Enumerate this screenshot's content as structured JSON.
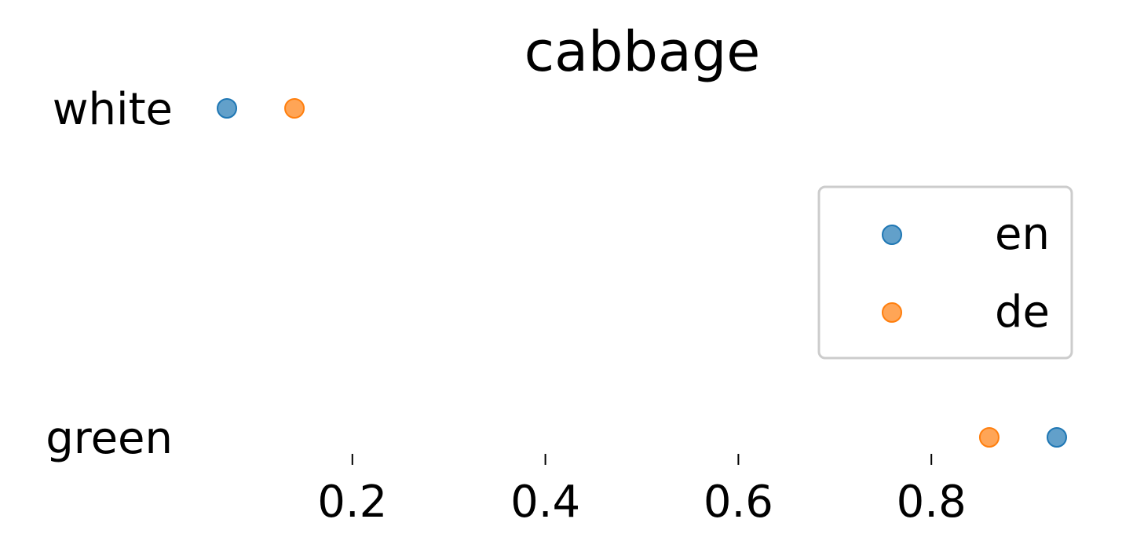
{
  "chart_data": {
    "type": "scatter",
    "title": "cabbage",
    "xlabel": "",
    "ylabel": "",
    "categories": [
      "white",
      "green"
    ],
    "xlim": [
      0.035,
      0.965
    ],
    "xticks": [
      {
        "value": 0.2,
        "label": "0.2"
      },
      {
        "value": 0.4,
        "label": "0.4"
      },
      {
        "value": 0.6,
        "label": "0.6"
      },
      {
        "value": 0.8,
        "label": "0.8"
      }
    ],
    "grid": false,
    "legend_position": "right",
    "series": [
      {
        "name": "en",
        "color": "#1f77b4",
        "values": [
          0.07,
          0.93
        ]
      },
      {
        "name": "de",
        "color": "#ff7f0e",
        "values": [
          0.14,
          0.86
        ]
      }
    ]
  }
}
